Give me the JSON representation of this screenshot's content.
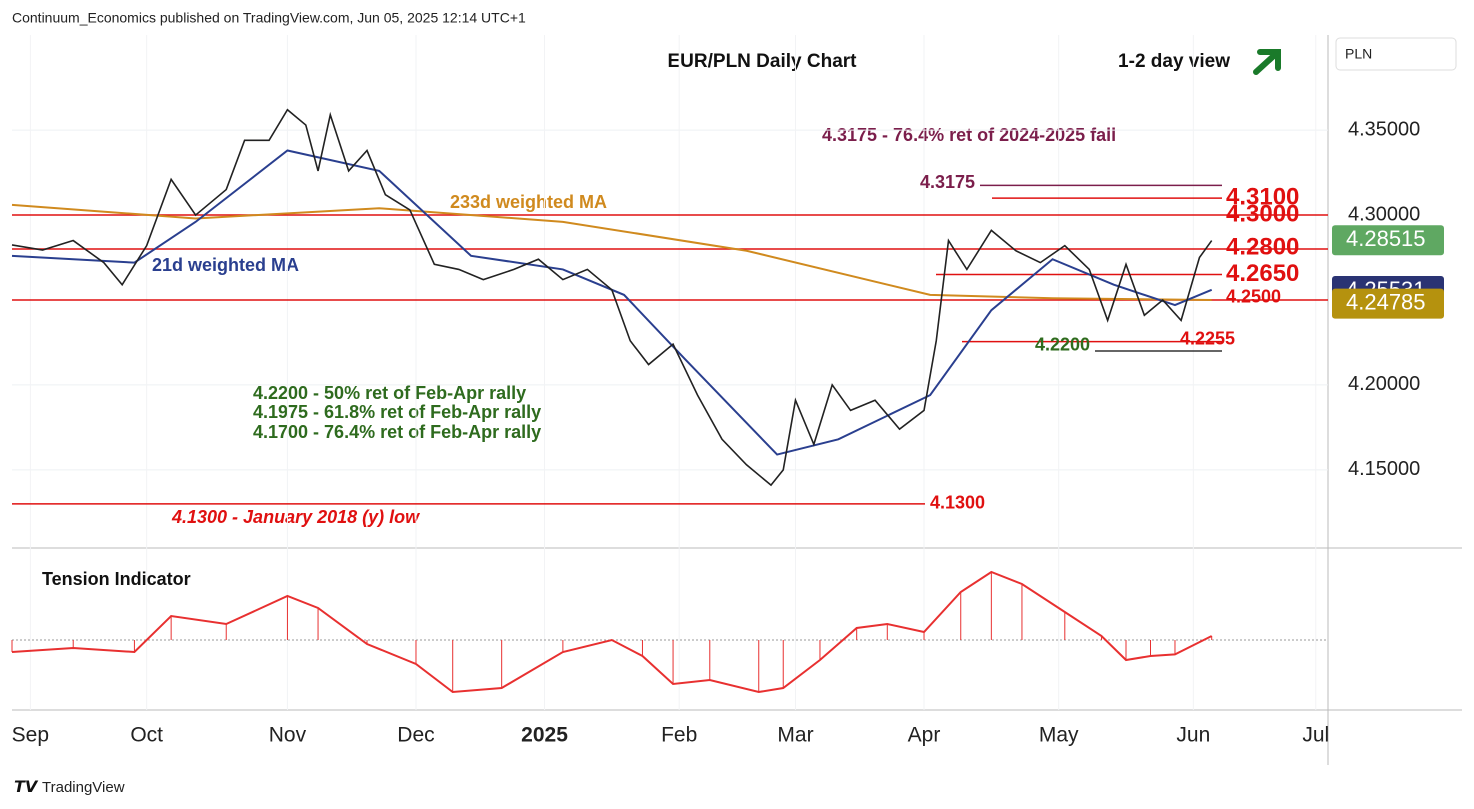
{
  "header": "Continuum_Economics published on TradingView.com, Jun 05, 2025 12:14 UTC+1",
  "footer": "TradingView",
  "currency": "PLN",
  "chart_data": {
    "type": "line",
    "title": "EUR/PLN Daily Chart",
    "subtitle": "1-2 day view",
    "xlim": [
      0,
      215
    ],
    "ylim": [
      4.104,
      4.406
    ],
    "xticks": [
      {
        "value": 3,
        "label": "Sep"
      },
      {
        "value": 22,
        "label": "Oct"
      },
      {
        "value": 45,
        "label": "Nov"
      },
      {
        "value": 66,
        "label": "Dec"
      },
      {
        "value": 87,
        "label": "2025"
      },
      {
        "value": 109,
        "label": "Feb"
      },
      {
        "value": 128,
        "label": "Mar"
      },
      {
        "value": 149,
        "label": "Apr"
      },
      {
        "value": 171,
        "label": "May"
      },
      {
        "value": 193,
        "label": "Jun"
      },
      {
        "value": 213,
        "label": "Jul"
      }
    ],
    "yticks": [
      {
        "value": 4.35,
        "label": "4.35000"
      },
      {
        "value": 4.3,
        "label": "4.30000"
      },
      {
        "value": 4.2,
        "label": "4.20000"
      },
      {
        "value": 4.15,
        "label": "4.15000"
      }
    ],
    "series": [
      {
        "name": "EUR/PLN",
        "color": "#222222",
        "x": [
          0,
          5,
          10,
          15,
          18,
          22,
          26,
          30,
          35,
          38,
          42,
          45,
          48,
          50,
          52,
          55,
          58,
          61,
          65,
          69,
          73,
          77,
          82,
          86,
          90,
          94,
          98,
          101,
          104,
          108,
          112,
          116,
          120,
          124,
          126,
          128,
          131,
          134,
          137,
          141,
          145,
          149,
          151,
          153,
          156,
          160,
          164,
          168,
          172,
          176,
          179,
          182,
          185,
          188,
          191,
          194,
          196
        ],
        "values": [
          4.2824,
          4.2794,
          4.285,
          4.272,
          4.259,
          4.282,
          4.321,
          4.3,
          4.315,
          4.344,
          4.344,
          4.362,
          4.353,
          4.326,
          4.359,
          4.326,
          4.338,
          4.312,
          4.303,
          4.271,
          4.268,
          4.262,
          4.268,
          4.274,
          4.262,
          4.268,
          4.256,
          4.226,
          4.212,
          4.224,
          4.194,
          4.168,
          4.153,
          4.141,
          4.15,
          4.191,
          4.165,
          4.2,
          4.185,
          4.191,
          4.174,
          4.185,
          4.226,
          4.285,
          4.268,
          4.291,
          4.279,
          4.272,
          4.282,
          4.268,
          4.238,
          4.271,
          4.241,
          4.25,
          4.238,
          4.275,
          4.285
        ]
      },
      {
        "name": "21d weighted MA",
        "color": "#2a3f8f",
        "x": [
          0,
          20,
          30,
          45,
          60,
          75,
          90,
          100,
          110,
          125,
          135,
          150,
          160,
          170,
          180,
          190,
          196
        ],
        "values": [
          4.276,
          4.272,
          4.296,
          4.338,
          4.326,
          4.276,
          4.268,
          4.253,
          4.215,
          4.159,
          4.168,
          4.194,
          4.244,
          4.274,
          4.259,
          4.247,
          4.256
        ]
      },
      {
        "name": "233d weighted MA",
        "color": "#d08a1e",
        "x": [
          0,
          30,
          60,
          90,
          120,
          150,
          170,
          196
        ],
        "values": [
          4.306,
          4.298,
          4.304,
          4.296,
          4.279,
          4.253,
          4.251,
          4.25
        ]
      }
    ],
    "levels": [
      {
        "value": 4.3175,
        "label": "4.3175",
        "color": "#7b1e4b"
      },
      {
        "value": 4.31,
        "label": "4.3100",
        "color": "#e01010"
      },
      {
        "value": 4.3,
        "label": "4.3000",
        "color": "#e01010"
      },
      {
        "value": 4.28,
        "label": "4.2800",
        "color": "#e01010"
      },
      {
        "value": 4.265,
        "label": "4.2650",
        "color": "#e01010"
      },
      {
        "value": 4.25,
        "label": "4.2500",
        "color": "#e01010"
      },
      {
        "value": 4.2255,
        "label": "4.2255",
        "color": "#e01010"
      },
      {
        "value": 4.22,
        "label": "4.2200",
        "color": "#2e6b1e"
      },
      {
        "value": 4.13,
        "label": "4.1300",
        "color": "#e01010"
      }
    ],
    "badges": [
      {
        "value": 4.28515,
        "label": "4.28515",
        "color": "#5fa862"
      },
      {
        "value": 4.25531,
        "label": "4.25531",
        "color": "#2a3373"
      },
      {
        "value": 4.24785,
        "label": "4.24785",
        "color": "#b5920e"
      }
    ],
    "annotations": [
      "4.3175 - 76.4% ret of 2024-2025 fall",
      "233d weighted MA",
      "21d weighted MA",
      "4.2200 - 50% ret of Feb-Apr rally",
      "4.1975 - 61.8% ret of Feb-Apr rally",
      "4.1700 - 76.4% ret of Feb-Apr rally",
      "4.1300 - January 2018 (y) low"
    ],
    "indicator": {
      "title": "Tension Indicator",
      "color": "#e83030",
      "ylim": [
        -1,
        1
      ],
      "x": [
        0,
        10,
        20,
        26,
        35,
        45,
        50,
        58,
        66,
        72,
        80,
        90,
        98,
        103,
        108,
        114,
        122,
        126,
        132,
        138,
        143,
        149,
        155,
        160,
        165,
        172,
        178,
        182,
        186,
        190,
        196
      ],
      "values": [
        -0.15,
        -0.1,
        -0.15,
        0.3,
        0.2,
        0.55,
        0.4,
        -0.05,
        -0.3,
        -0.65,
        -0.6,
        -0.15,
        0,
        -0.2,
        -0.55,
        -0.5,
        -0.65,
        -0.6,
        -0.25,
        0.15,
        0.2,
        0.1,
        0.6,
        0.85,
        0.7,
        0.35,
        0.05,
        -0.25,
        -0.2,
        -0.18,
        0.05
      ]
    }
  }
}
